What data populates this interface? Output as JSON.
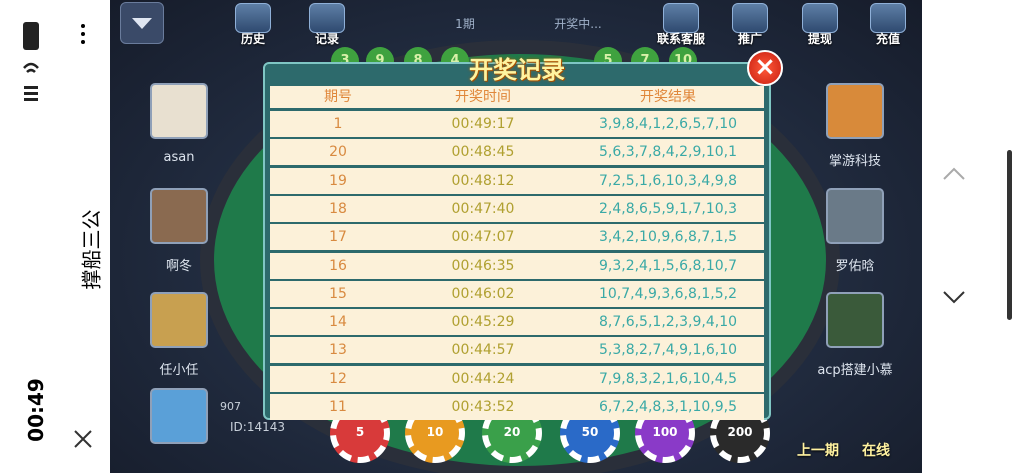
{
  "status_bar": {
    "time": "00:49"
  },
  "header": {
    "app_title": "撑船三公"
  },
  "toolbar": {
    "buttons": [
      "历史",
      "记录",
      "联系客服",
      "推广",
      "提现",
      "充值"
    ],
    "period": "1期",
    "status": "开奖中..."
  },
  "balls": [
    "3",
    "9",
    "8",
    "4",
    "5",
    "7",
    "10"
  ],
  "players": [
    {
      "name": "asan"
    },
    {
      "name": "啊冬"
    },
    {
      "name": "任小任"
    },
    {
      "name": "掌游科技"
    },
    {
      "name": "罗佑晗"
    },
    {
      "name": "acp搭建小慕"
    }
  ],
  "self": {
    "balance": "907",
    "id": "ID:14143"
  },
  "chips": [
    "5",
    "10",
    "20",
    "50",
    "100",
    "200"
  ],
  "bottom_buttons": [
    "上一期",
    "在线"
  ],
  "modal": {
    "title": "开奖记录",
    "columns": [
      "期号",
      "开奖时间",
      "开奖结果"
    ],
    "rows": [
      [
        "1",
        "00:49:17",
        "3,9,8,4,1,2,6,5,7,10"
      ],
      [
        "20",
        "00:48:45",
        "5,6,3,7,8,4,2,9,10,1"
      ],
      [
        "19",
        "00:48:12",
        "7,2,5,1,6,10,3,4,9,8"
      ],
      [
        "18",
        "00:47:40",
        "2,4,8,6,5,9,1,7,10,3"
      ],
      [
        "17",
        "00:47:07",
        "3,4,2,10,9,6,8,7,1,5"
      ],
      [
        "16",
        "00:46:35",
        "9,3,2,4,1,5,6,8,10,7"
      ],
      [
        "15",
        "00:46:02",
        "10,7,4,9,3,6,8,1,5,2"
      ],
      [
        "14",
        "00:45:29",
        "8,7,6,5,1,2,3,9,4,10"
      ],
      [
        "13",
        "00:44:57",
        "5,3,8,2,7,4,9,1,6,10"
      ],
      [
        "12",
        "00:44:24",
        "7,9,8,3,2,1,6,10,4,5"
      ],
      [
        "11",
        "00:43:52",
        "6,7,2,4,8,3,1,10,9,5"
      ]
    ]
  }
}
